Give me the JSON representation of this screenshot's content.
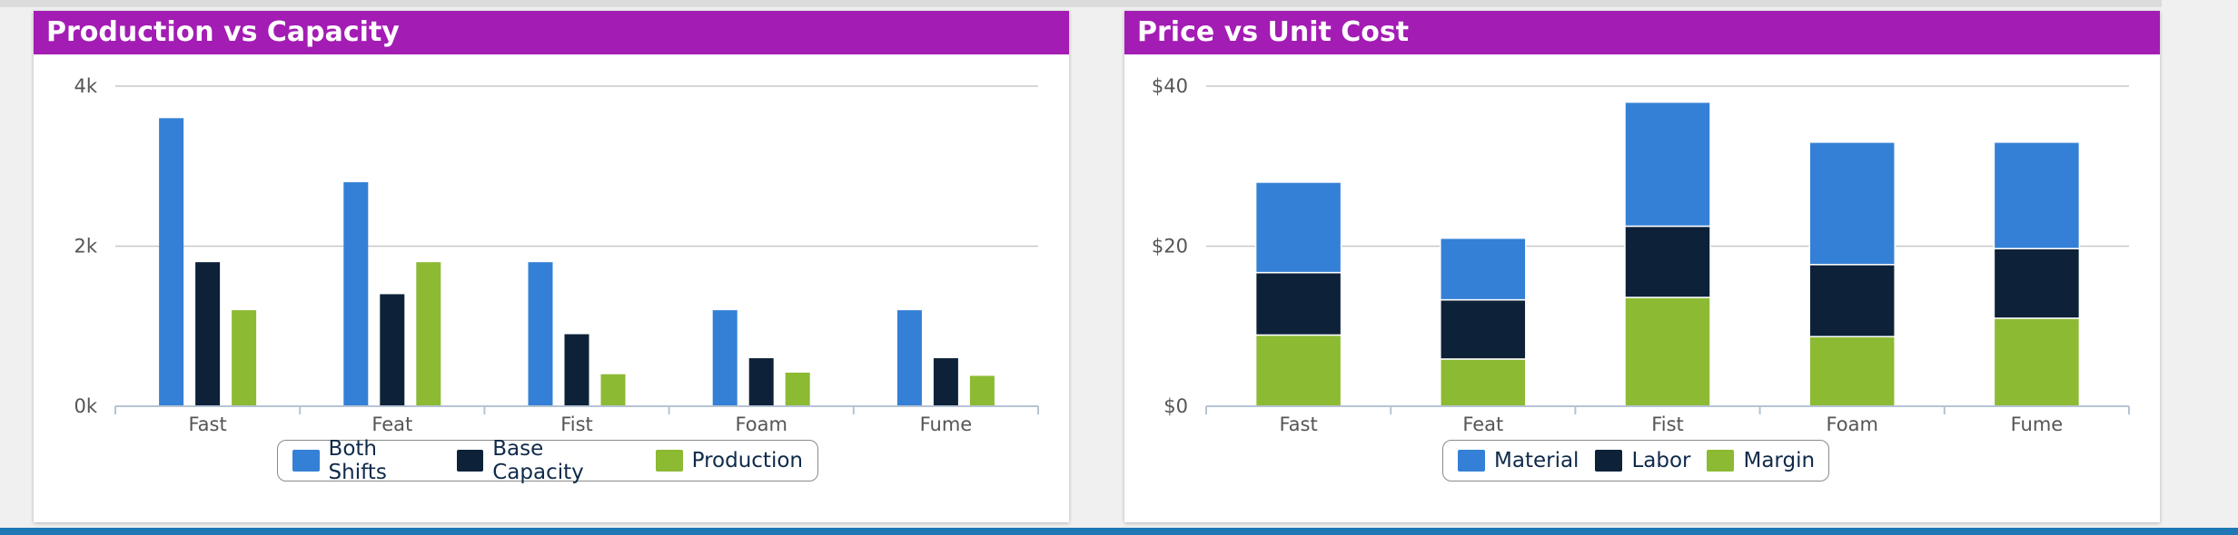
{
  "colors": {
    "header": "#a31cb4",
    "series_blue": "#3480d6",
    "series_navy": "#0d2239",
    "series_green": "#8cba33",
    "axis_text": "#555555",
    "grid": "#c8c8c8"
  },
  "chart_data": [
    {
      "type": "bar",
      "title": "Production vs Capacity",
      "categories": [
        "Fast",
        "Feat",
        "Fist",
        "Foam",
        "Fume"
      ],
      "series": [
        {
          "name": "Both Shifts",
          "color": "#3480d6",
          "values": [
            3600,
            2800,
            1800,
            1200,
            1200
          ]
        },
        {
          "name": "Base Capacity",
          "color": "#0d2239",
          "values": [
            1800,
            1400,
            900,
            600,
            600
          ]
        },
        {
          "name": "Production",
          "color": "#8cba33",
          "values": [
            1200,
            1800,
            400,
            420,
            380
          ]
        }
      ],
      "ylim": [
        0,
        4000
      ],
      "yticks": [
        0,
        2000,
        4000
      ],
      "ytick_labels": [
        "0k",
        "2k",
        "4k"
      ],
      "grid": true,
      "legend_position": "bottom-center"
    },
    {
      "type": "bar",
      "stacked": true,
      "title": "Price vs Unit Cost",
      "categories": [
        "Fast",
        "Feat",
        "Fist",
        "Foam",
        "Fume"
      ],
      "series": [
        {
          "name": "Material",
          "color": "#3480d6",
          "values": [
            11.3,
            7.7,
            15.5,
            15.3,
            13.3
          ]
        },
        {
          "name": "Labor",
          "color": "#0d2239",
          "values": [
            7.8,
            7.4,
            8.9,
            9.0,
            8.7
          ]
        },
        {
          "name": "Margin",
          "color": "#8cba33",
          "values": [
            8.9,
            5.9,
            13.6,
            8.7,
            11.0
          ]
        }
      ],
      "ylim": [
        0,
        40
      ],
      "yticks": [
        0,
        20,
        40
      ],
      "ytick_labels": [
        "$0",
        "$20",
        "$40"
      ],
      "grid": true,
      "legend_position": "bottom-center"
    }
  ]
}
